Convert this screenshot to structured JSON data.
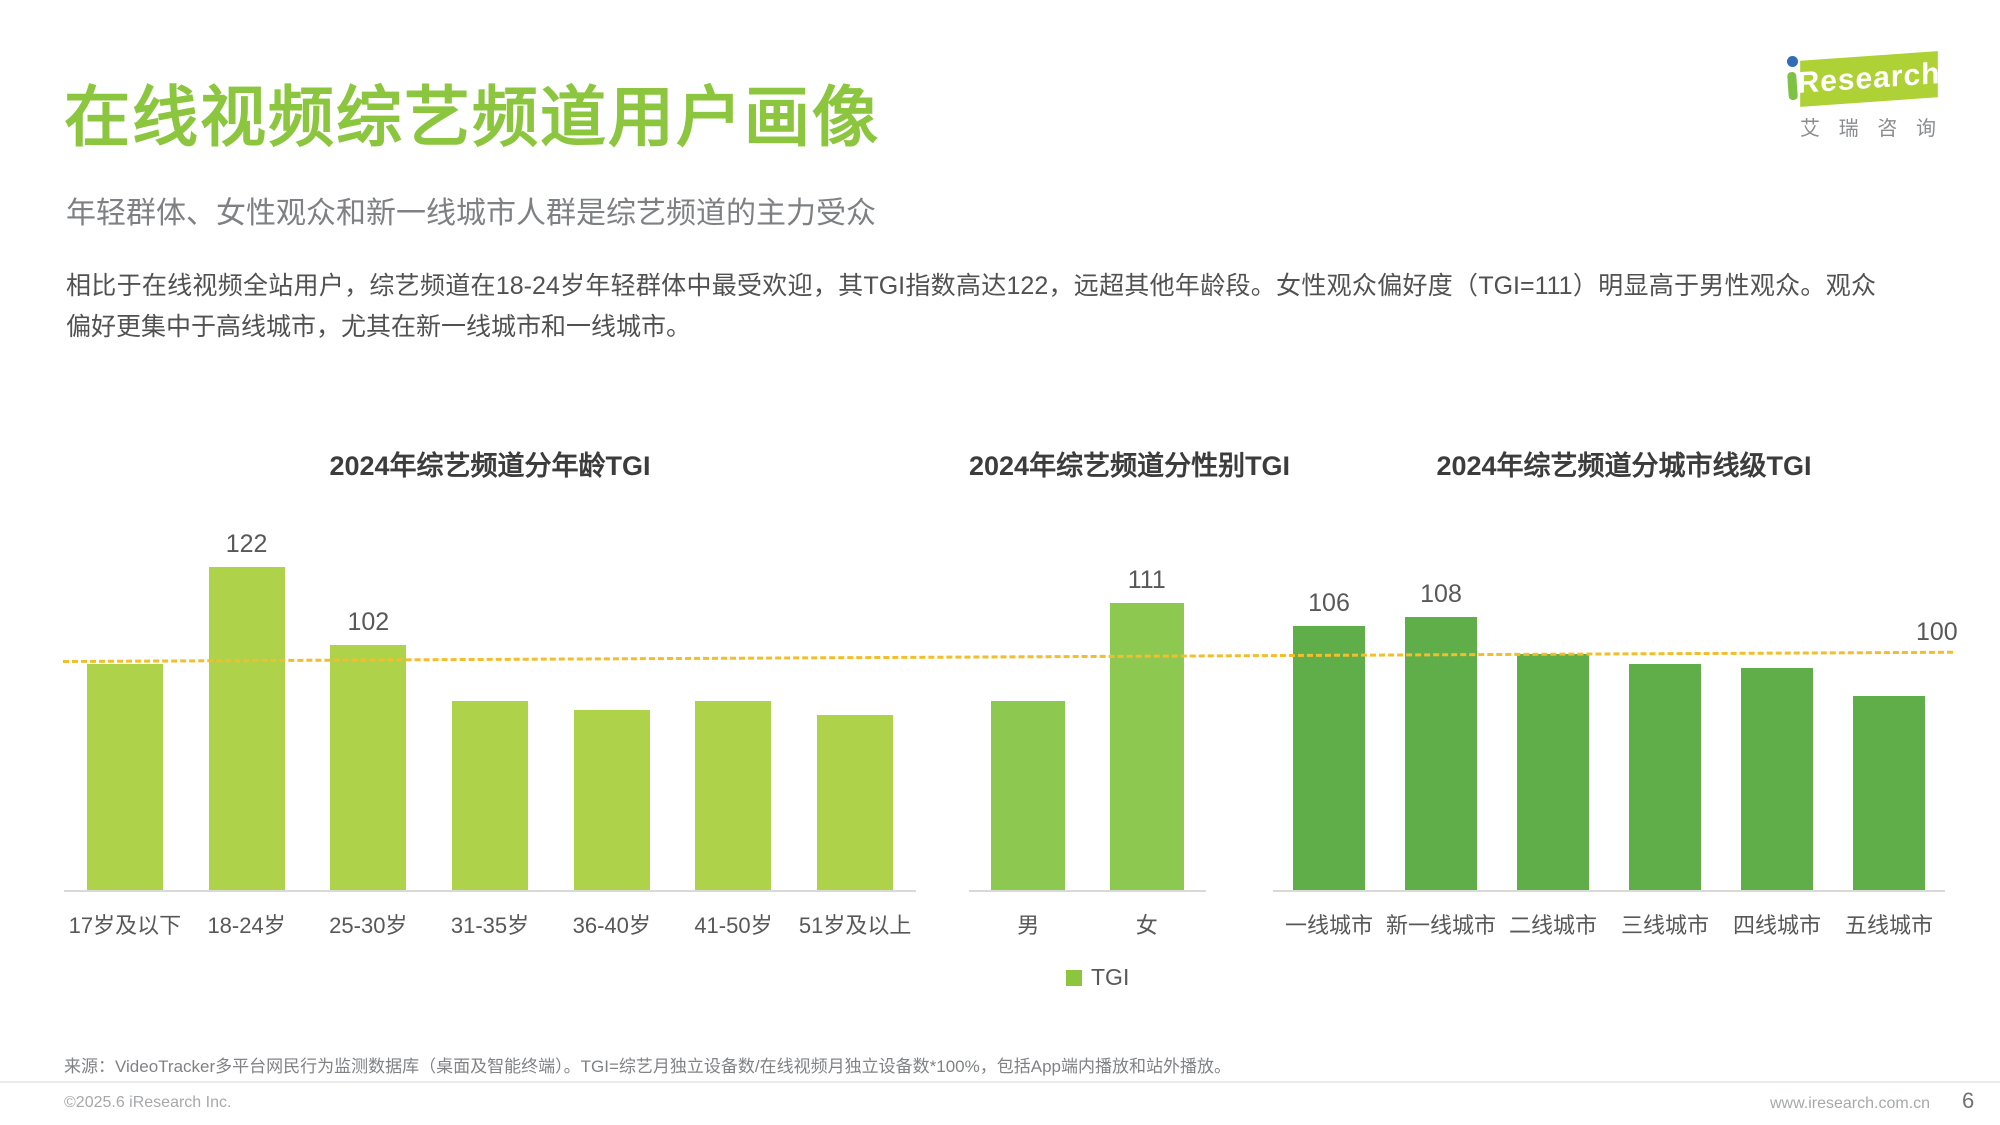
{
  "header": {
    "title": "在线视频综艺频道用户画像",
    "subtitle": "年轻群体、女性观众和新一线城市人群是综艺频道的主力受众",
    "paragraph": "相比于在线视频全站用户，综艺频道在18-24岁年轻群体中最受欢迎，其TGI指数高达122，远超其他年龄段。女性观众偏好度（TGI=111）明显高于男性观众。观众偏好更集中于高线城市，尤其在新一线城市和一线城市。"
  },
  "logo": {
    "brand_text": "Research",
    "brand_cn": "艾瑞咨询"
  },
  "colors": {
    "title_green": "#8CC63F",
    "chart1_bar": "#AFD24B",
    "chart2_bar": "#8DC950",
    "chart3_bar": "#60AE4A",
    "guide_line": "#F3BE2B",
    "baseline_gray": "#D9D9D9"
  },
  "guide_line": {
    "value": 100,
    "label": "100"
  },
  "legend": {
    "label": "TGI",
    "swatch_color": "#8CC63E"
  },
  "chart_data": [
    {
      "type": "bar",
      "title": "2024年综艺频道分年龄TGI",
      "categories": [
        "17岁及以下",
        "18-24岁",
        "25-30岁",
        "31-35岁",
        "36-40岁",
        "41-50岁",
        "51岁及以上"
      ],
      "values": [
        98,
        122,
        102,
        90,
        88,
        90,
        87
      ],
      "data_labels": [
        "",
        "122",
        "102",
        "",
        "",
        "",
        ""
      ],
      "bar_color": "#AFD24B",
      "baseline_value": 100,
      "ylim": [
        49,
        130
      ],
      "grid": false,
      "legend_position": "bottom"
    },
    {
      "type": "bar",
      "title": "2024年综艺频道分性别TGI",
      "categories": [
        "男",
        "女"
      ],
      "values": [
        90,
        111
      ],
      "data_labels": [
        "",
        "111"
      ],
      "bar_color": "#8DC950",
      "baseline_value": 100,
      "ylim": [
        49,
        130
      ],
      "grid": false,
      "legend_position": "bottom"
    },
    {
      "type": "bar",
      "title": "2024年综艺频道分城市线级TGI",
      "categories": [
        "一线城市",
        "新一线城市",
        "二线城市",
        "三线城市",
        "四线城市",
        "五线城市"
      ],
      "values": [
        106,
        108,
        100,
        98,
        97,
        91
      ],
      "data_labels": [
        "106",
        "108",
        "",
        "",
        "",
        ""
      ],
      "bar_color": "#60AE4A",
      "baseline_value": 100,
      "ylim": [
        49,
        130
      ],
      "grid": false,
      "legend_position": "bottom"
    }
  ],
  "footer": {
    "source": "来源：VideoTracker多平台网民行为监测数据库（桌面及智能终端）。TGI=综艺月独立设备数/在线视频月独立设备数*100%，包括App端内播放和站外播放。",
    "copyright": "©2025.6 iResearch Inc.",
    "website": "www.iresearch.com.cn",
    "page_number": "6"
  }
}
